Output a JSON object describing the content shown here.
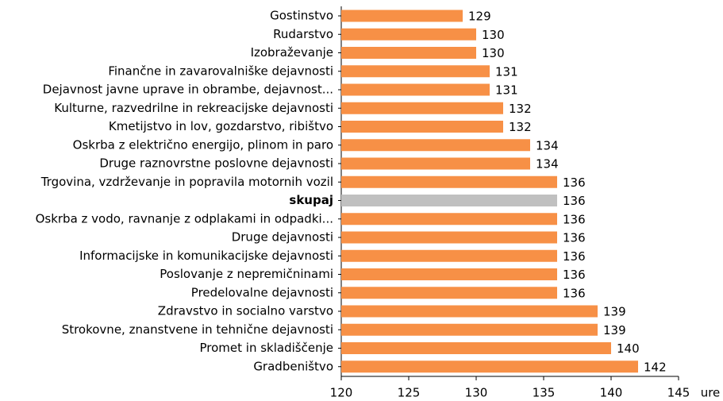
{
  "chart_data": {
    "type": "bar",
    "orientation": "horizontal",
    "categories": [
      "Gostinstvo",
      "Rudarstvo",
      "Izobraževanje",
      "Finančne in zavarovalniške dejavnosti",
      "Dejavnost javne uprave in obrambe, dejavnost...",
      "Kulturne, razvedrilne in rekreacijske dejavnosti",
      "Kmetijstvo in lov, gozdarstvo, ribištvo",
      "Oskrba z električno energijo, plinom in paro",
      "Druge raznovrstne poslovne dejavnosti",
      "Trgovina, vzdrževanje in popravila motornih vozil",
      "skupaj",
      "Oskrba z vodo, ravnanje z odplakami in odpadki...",
      "Druge dejavnosti",
      "Informacijske in komunikacijske dejavnosti",
      "Poslovanje z nepremičninami",
      "Predelovalne dejavnosti",
      "Zdravstvo in socialno varstvo",
      "Strokovne, znanstvene in tehnične dejavnosti",
      "Promet in skladiščenje",
      "Gradbeništvo"
    ],
    "values": [
      129,
      130,
      130,
      131,
      131,
      132,
      132,
      134,
      134,
      136,
      136,
      136,
      136,
      136,
      136,
      136,
      139,
      139,
      140,
      142
    ],
    "color": "#f79046",
    "colors": [
      "#f79046",
      "#f79046",
      "#f79046",
      "#f79046",
      "#f79046",
      "#f79046",
      "#f79046",
      "#f79046",
      "#f79046",
      "#f79046",
      "#c0c0c0",
      "#f79046",
      "#f79046",
      "#f79046",
      "#f79046",
      "#f79046",
      "#f79046",
      "#f79046",
      "#f79046",
      "#f79046"
    ],
    "xlabel": "ure",
    "xlim": [
      120,
      145
    ],
    "xticks": [
      120,
      125,
      130,
      135,
      140,
      145
    ],
    "grid": false
  }
}
